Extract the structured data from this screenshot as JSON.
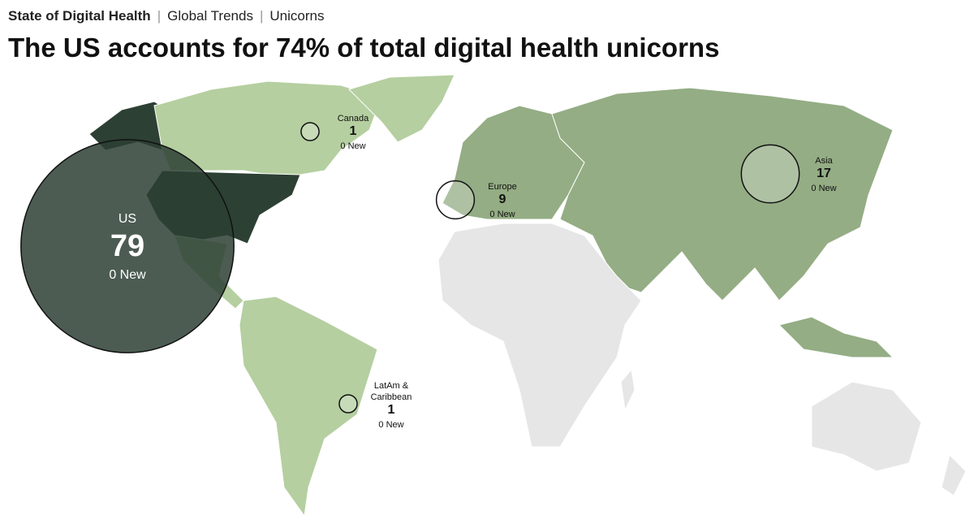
{
  "header": {
    "crumbs": [
      "State of Digital Health",
      "Global Trends",
      "Unicorns"
    ],
    "title": "The US accounts for 74% of total digital health unicorns"
  },
  "regions": [
    {
      "name": "US",
      "count": 79,
      "new": "0 New"
    },
    {
      "name": "Canada",
      "count": 1,
      "new": "0 New"
    },
    {
      "name": "Europe",
      "count": 9,
      "new": "0 New"
    },
    {
      "name": "Asia",
      "count": 17,
      "new": "0 New"
    },
    {
      "name": "LatAm & Caribbean",
      "count": 1,
      "new": "0 New"
    }
  ]
}
